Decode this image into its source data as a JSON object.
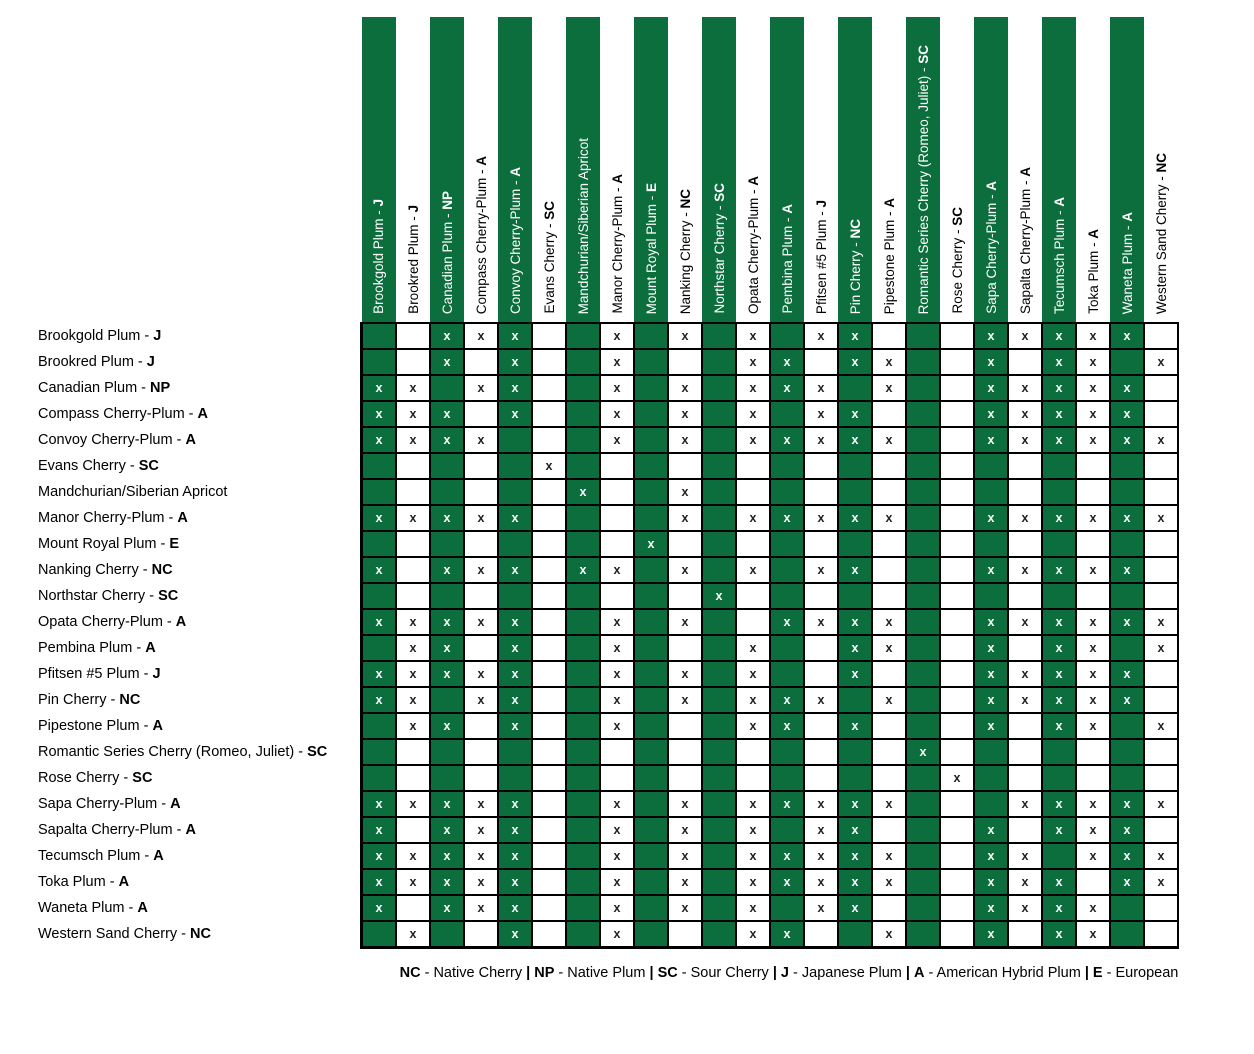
{
  "palette": {
    "highlight_green": "#0b6e3c",
    "grid_line": "#000000",
    "mark_on_green": "#ffffff",
    "mark_on_white": "#222222",
    "background": "#ffffff"
  },
  "x_mark": "x",
  "varieties": [
    {
      "name": "Brookgold Plum",
      "code": "J",
      "highlighted": true
    },
    {
      "name": "Brookred Plum",
      "code": "J",
      "highlighted": false
    },
    {
      "name": "Canadian Plum",
      "code": "NP",
      "highlighted": true
    },
    {
      "name": "Compass Cherry-Plum",
      "code": "A",
      "highlighted": false
    },
    {
      "name": "Convoy Cherry-Plum",
      "code": "A",
      "highlighted": true
    },
    {
      "name": "Evans Cherry",
      "code": "SC",
      "highlighted": false
    },
    {
      "name": "Mandchurian/Siberian Apricot",
      "code": "",
      "highlighted": true
    },
    {
      "name": "Manor Cherry-Plum",
      "code": "A",
      "highlighted": false
    },
    {
      "name": "Mount Royal Plum",
      "code": "E",
      "highlighted": true
    },
    {
      "name": "Nanking Cherry",
      "code": "NC",
      "highlighted": false
    },
    {
      "name": "Northstar Cherry",
      "code": "SC",
      "highlighted": true
    },
    {
      "name": "Opata Cherry-Plum",
      "code": "A",
      "highlighted": false
    },
    {
      "name": "Pembina Plum",
      "code": "A",
      "highlighted": true
    },
    {
      "name": "Pfitsen #5 Plum",
      "code": "J",
      "highlighted": false
    },
    {
      "name": "Pin Cherry",
      "code": "NC",
      "highlighted": true
    },
    {
      "name": "Pipestone Plum",
      "code": "A",
      "highlighted": false
    },
    {
      "name": "Romantic Series Cherry (Romeo, Juliet)",
      "code": "SC",
      "highlighted": true
    },
    {
      "name": "Rose Cherry",
      "code": "SC",
      "highlighted": false
    },
    {
      "name": "Sapa Cherry-Plum",
      "code": "A",
      "highlighted": true
    },
    {
      "name": "Sapalta Cherry-Plum",
      "code": "A",
      "highlighted": false
    },
    {
      "name": "Tecumsch Plum",
      "code": "A",
      "highlighted": true
    },
    {
      "name": "Toka Plum",
      "code": "A",
      "highlighted": false
    },
    {
      "name": "Waneta Plum",
      "code": "A",
      "highlighted": true
    },
    {
      "name": "Western Sand Cherry",
      "code": "NC",
      "highlighted": false
    }
  ],
  "chart_data": {
    "type": "table",
    "title": "",
    "description": "Pollination compatibility matrix; x marks compatible pollinator pairs",
    "row_labels": [
      "Brookgold Plum - J",
      "Brookred Plum - J",
      "Canadian Plum - NP",
      "Compass Cherry-Plum - A",
      "Convoy Cherry-Plum - A",
      "Evans Cherry - SC",
      "Mandchurian/Siberian Apricot",
      "Manor Cherry-Plum - A",
      "Mount Royal Plum - E",
      "Nanking Cherry - NC",
      "Northstar Cherry - SC",
      "Opata Cherry-Plum - A",
      "Pembina Plum - A",
      "Pfitsen #5 Plum - J",
      "Pin Cherry - NC",
      "Pipestone Plum - A",
      "Romantic Series Cherry (Romeo, Juliet) - SC",
      "Rose Cherry - SC",
      "Sapa Cherry-Plum - A",
      "Sapalta Cherry-Plum - A",
      "Tecumsch Plum - A",
      "Toka Plum - A",
      "Waneta Plum - A",
      "Western Sand Cherry - NC"
    ],
    "col_labels": [
      "Brookgold Plum - J",
      "Brookred Plum - J",
      "Canadian Plum - NP",
      "Compass Cherry-Plum - A",
      "Convoy Cherry-Plum - A",
      "Evans Cherry - SC",
      "Mandchurian/Siberian Apricot",
      "Manor Cherry-Plum - A",
      "Mount Royal Plum - E",
      "Nanking Cherry - NC",
      "Northstar Cherry - SC",
      "Opata Cherry-Plum - A",
      "Pembina Plum - A",
      "Pfitsen #5 Plum - J",
      "Pin Cherry - NC",
      "Pipestone Plum - A",
      "Romantic Series Cherry (Romeo, Juliet) - SC",
      "Rose Cherry - SC",
      "Sapa Cherry-Plum - A",
      "Sapalta Cherry-Plum - A",
      "Tecumsch Plum - A",
      "Toka Plum - A",
      "Waneta Plum - A",
      "Western Sand Cherry - NC"
    ],
    "matrix": [
      "001110010101011000111110",
      "001010010001101100101101",
      "110110010101110100111110",
      "111010010101011000111110",
      "111100010101111100111111",
      "000001000000000000000000",
      "000000100100000000000000",
      "111110000101111100111111",
      "000000001000000000000000",
      "101110110101011000111110",
      "000000000010000000000000",
      "111110010100111100111111",
      "011010010001001100101101",
      "111110010101001000111110",
      "110110010101110100111110",
      "011010010001101000101101",
      "000000000000000010000000",
      "000000000000000001000000",
      "111110010101111100011111",
      "101110010101011000101110",
      "111110010101111100110111",
      "111110010101111100111011",
      "101110010101011000111100",
      "010010010001100100101100"
    ]
  },
  "legend": {
    "separator": "|",
    "dash": "-",
    "entries": [
      {
        "code": "NC",
        "label": "Native Cherry"
      },
      {
        "code": "NP",
        "label": "Native Plum"
      },
      {
        "code": "SC",
        "label": "Sour Cherry"
      },
      {
        "code": "J",
        "label": "Japanese Plum"
      },
      {
        "code": "A",
        "label": "American Hybrid Plum"
      },
      {
        "code": "E",
        "label": "European"
      }
    ]
  }
}
